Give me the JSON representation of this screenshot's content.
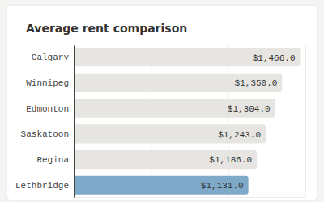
{
  "chart_data": {
    "type": "bar",
    "orientation": "horizontal",
    "title": "Average rent comparison",
    "categories": [
      "Calgary",
      "Winnipeg",
      "Edmonton",
      "Saskatoon",
      "Regina",
      "Lethbridge"
    ],
    "values": [
      1466.0,
      1350.0,
      1304.0,
      1243.0,
      1186.0,
      1131.0
    ],
    "value_labels": [
      "$1,466.0",
      "$1,350.0",
      "$1,304.0",
      "$1,243.0",
      "$1,186.0",
      "$1,131.0"
    ],
    "colors": [
      "#e6e5e1",
      "#e6e5e1",
      "#e6e5e1",
      "#e6e5e1",
      "#e6e5e1",
      "#7ea9c8"
    ],
    "xlim": [
      0,
      1500
    ],
    "xticks": [
      0,
      500,
      1000,
      1500
    ],
    "grid": true,
    "data_labels": true,
    "tick_labels": "y"
  }
}
